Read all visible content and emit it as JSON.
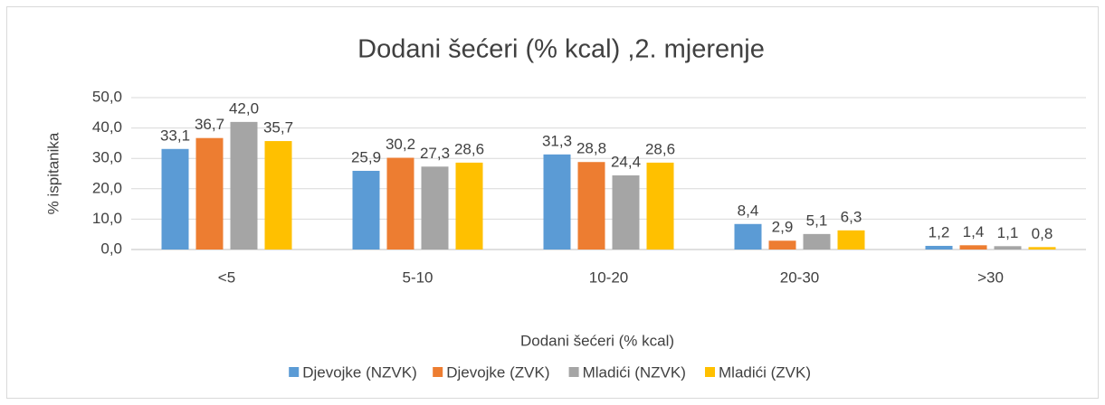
{
  "chart_data": {
    "type": "bar",
    "title": "Dodani šećeri (% kcal) ,2. mjerenje",
    "x_label": "Dodani šećeri (% kcal)",
    "y_label": "% ispitanika",
    "categories": [
      "<5",
      "5-10",
      "10-20",
      "20-30",
      ">30"
    ],
    "series": [
      {
        "name": "Djevojke (NZVK)",
        "color": "#5b9bd5",
        "values": [
          33.1,
          25.9,
          31.3,
          8.4,
          1.2
        ],
        "value_labels": [
          "33,1",
          "25,9",
          "31,3",
          "8,4",
          "1,2"
        ]
      },
      {
        "name": "Djevojke (ZVK)",
        "color": "#ed7d31",
        "values": [
          36.7,
          30.2,
          28.8,
          2.9,
          1.4
        ],
        "value_labels": [
          "36,7",
          "30,2",
          "28,8",
          "2,9",
          "1,4"
        ]
      },
      {
        "name": "Mladići (NZVK)",
        "color": "#a5a5a5",
        "values": [
          42.0,
          27.3,
          24.4,
          5.1,
          1.1
        ],
        "value_labels": [
          "42,0",
          "27,3",
          "24,4",
          "5,1",
          "1,1"
        ]
      },
      {
        "name": "Mladići (ZVK)",
        "color": "#ffc000",
        "values": [
          35.7,
          28.6,
          28.6,
          6.3,
          0.8
        ],
        "value_labels": [
          "35,7",
          "28,6",
          "28,6",
          "6,3",
          "0,8"
        ]
      }
    ],
    "ylim": [
      0,
      50
    ],
    "yticks": [
      {
        "value": 0,
        "label": "0,0"
      },
      {
        "value": 10,
        "label": "10,0"
      },
      {
        "value": 20,
        "label": "20,0"
      },
      {
        "value": 30,
        "label": "30,0"
      },
      {
        "value": 40,
        "label": "40,0"
      },
      {
        "value": 50,
        "label": "50,0"
      }
    ],
    "grid": true,
    "legend": "bottom"
  }
}
